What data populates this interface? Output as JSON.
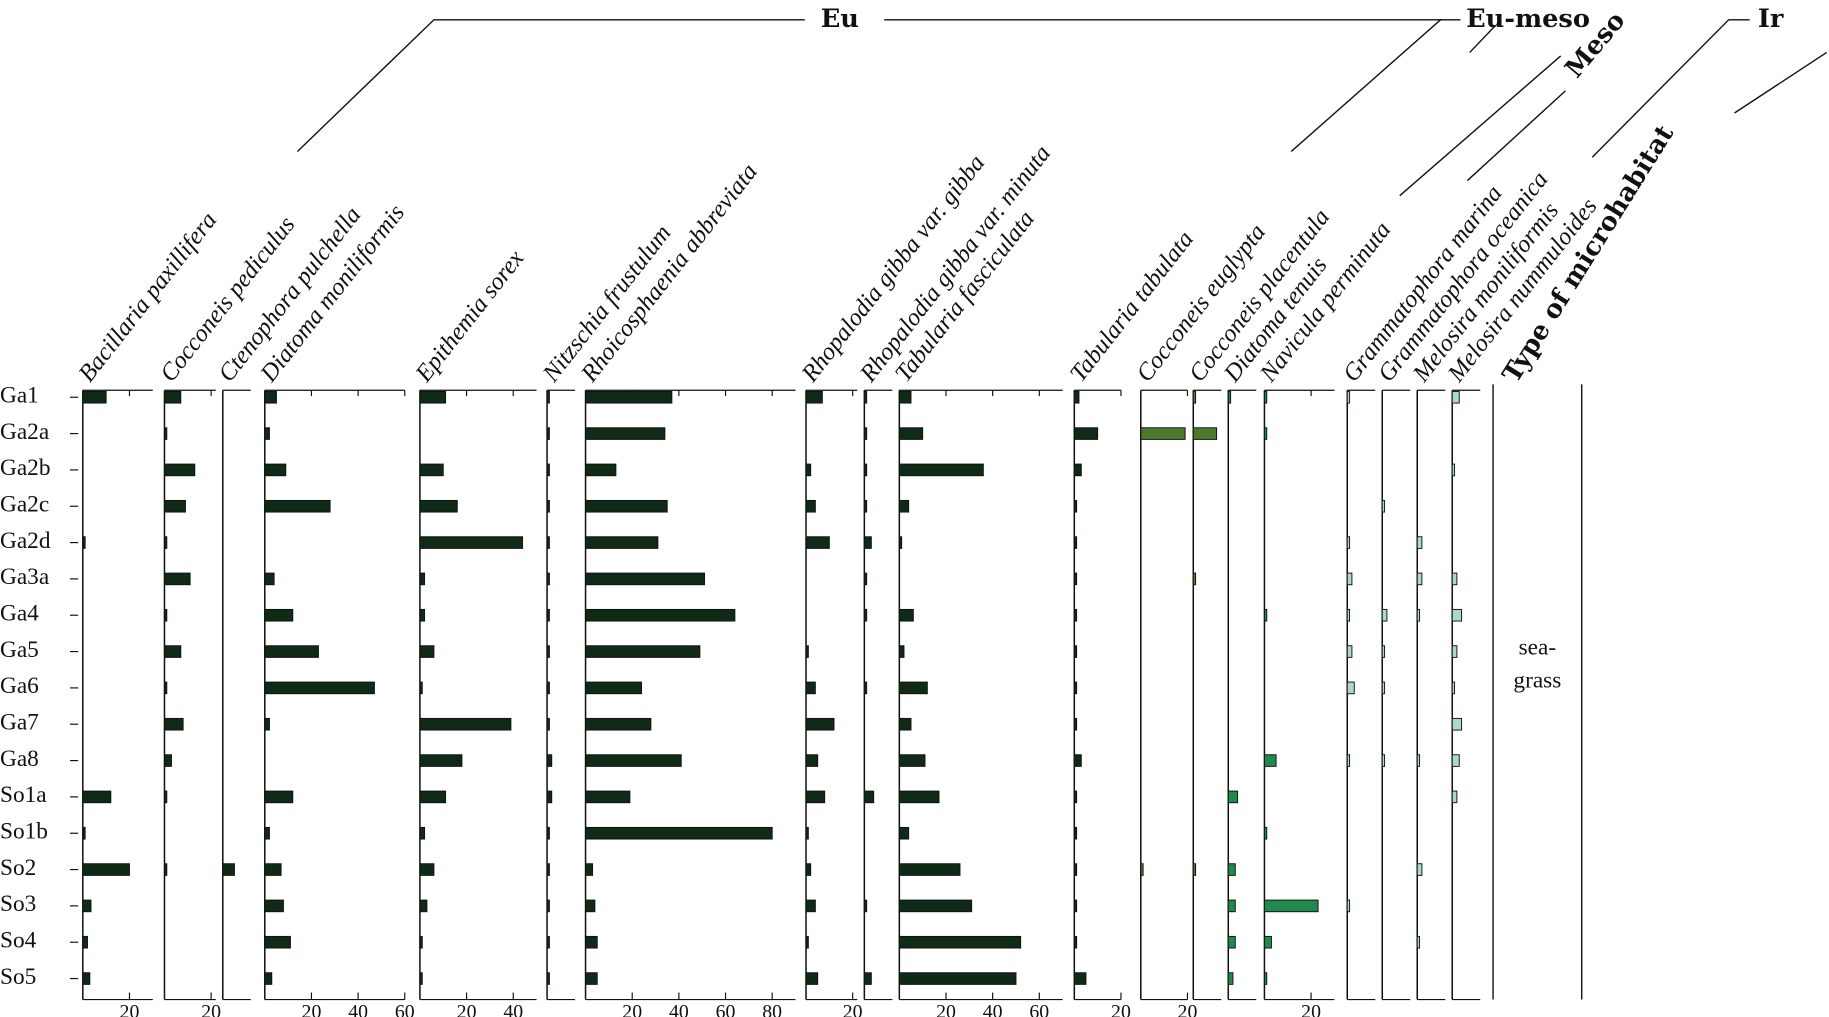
{
  "chart_data": {
    "type": "bar",
    "orientation": "horizontal",
    "categories": [
      "Ga1",
      "Ga2a",
      "Ga2b",
      "Ga2c",
      "Ga2d",
      "Ga3a",
      "Ga4",
      "Ga5",
      "Ga6",
      "Ga7",
      "Ga8",
      "So1a",
      "So1b",
      "So2",
      "So3",
      "So4",
      "So5"
    ],
    "series": [
      {
        "name": "Bacillaria paxillifera",
        "color": "#0f2a16",
        "xlim": [
          0,
          30
        ],
        "xticks": [
          20
        ],
        "values": [
          10,
          0,
          0,
          0,
          1,
          0,
          0,
          0,
          0,
          0,
          0,
          12,
          1,
          20,
          3.5,
          2,
          3
        ]
      },
      {
        "name": "Cocconeis pediculus",
        "color": "#0f2a16",
        "xlim": [
          0,
          22
        ],
        "xticks": [
          20
        ],
        "values": [
          7,
          1,
          13,
          9,
          1,
          11,
          1,
          7,
          1,
          8,
          3,
          1,
          0,
          1,
          0,
          0,
          0
        ]
      },
      {
        "name": "Ctenophora pulchella",
        "color": "#0f2a16",
        "xlim": [
          0,
          12
        ],
        "xticks": [],
        "values": [
          0,
          0,
          0,
          0,
          0,
          0,
          0,
          0,
          0,
          0,
          0,
          0,
          0,
          5,
          0,
          0,
          0
        ]
      },
      {
        "name": "Diatoma moniliformis",
        "color": "#0f2a16",
        "xlim": [
          0,
          60
        ],
        "xticks": [
          20,
          40,
          60
        ],
        "values": [
          5,
          2,
          9,
          28,
          0,
          4,
          12,
          23,
          47,
          2,
          0,
          12,
          2,
          7,
          8,
          11,
          3
        ]
      },
      {
        "name": "Epithemia sorex",
        "color": "#0f2a16",
        "xlim": [
          0,
          50
        ],
        "xticks": [
          20,
          40
        ],
        "values": [
          11,
          0,
          10,
          16,
          44,
          2,
          2,
          6,
          1,
          39,
          18,
          11,
          2,
          6,
          3,
          1,
          1
        ]
      },
      {
        "name": "Nitzschia frustulum",
        "color": "#0f2a16",
        "xlim": [
          0,
          12
        ],
        "xticks": [],
        "values": [
          1,
          1,
          1,
          1,
          1,
          1,
          1,
          1,
          1,
          1,
          2,
          2,
          1,
          1,
          1,
          1,
          1
        ]
      },
      {
        "name": "Rhoicosphaenia abbreviata",
        "color": "#0f2a16",
        "xlim": [
          0,
          90
        ],
        "xticks": [
          20,
          40,
          60,
          80
        ],
        "values": [
          37,
          34,
          13,
          35,
          31,
          51,
          64,
          49,
          24,
          28,
          41,
          19,
          80,
          3,
          4,
          5,
          5
        ]
      },
      {
        "name": "Rhopalodia gibba var. gibba",
        "color": "#0f2a16",
        "xlim": [
          0,
          22
        ],
        "xticks": [
          20
        ],
        "values": [
          7,
          0,
          2,
          4,
          10,
          0,
          0,
          1,
          4,
          12,
          5,
          8,
          1,
          2,
          4,
          1,
          5
        ]
      },
      {
        "name": "Rhopalodia gibba var. minuta",
        "color": "#0f2a16",
        "xlim": [
          0,
          12
        ],
        "xticks": [],
        "values": [
          1,
          1,
          1,
          1,
          3,
          1,
          1,
          0,
          1,
          0,
          0,
          4,
          0,
          0,
          1,
          0,
          3
        ]
      },
      {
        "name": "Tabularia fasciculata",
        "color": "#0f2a16",
        "xlim": [
          0,
          70
        ],
        "xticks": [
          20,
          40,
          60
        ],
        "values": [
          5,
          10,
          36,
          4,
          1,
          0,
          6,
          2,
          12,
          5,
          11,
          17,
          4,
          26,
          31,
          52,
          50
        ]
      },
      {
        "name": "Tabularia tabulata",
        "color": "#0f2a16",
        "xlim": [
          0,
          20
        ],
        "xticks": [
          20
        ],
        "values": [
          2,
          10,
          3,
          1,
          1,
          1,
          1,
          1,
          1,
          1,
          3,
          1,
          1,
          1,
          1,
          1,
          5
        ]
      },
      {
        "name": "Cocconeis euglypta",
        "color": "#4c7a2c",
        "xlim": [
          0,
          20
        ],
        "xticks": [
          20
        ],
        "values": [
          0,
          19,
          0,
          0,
          0,
          0,
          0,
          0,
          0,
          0,
          0,
          0,
          0,
          1,
          0,
          0,
          0
        ]
      },
      {
        "name": "Cocconeis placentula",
        "color": "#4c7a2c",
        "xlim": [
          0,
          12
        ],
        "xticks": [],
        "values": [
          1,
          10,
          0,
          0,
          0,
          1,
          0,
          0,
          0,
          0,
          0,
          0,
          0,
          1,
          0,
          0,
          0
        ]
      },
      {
        "name": "Diatoma tenuis",
        "color": "#1f8a4c",
        "xlim": [
          0,
          12
        ],
        "xticks": [],
        "values": [
          1,
          0,
          0,
          0,
          0,
          0,
          0,
          0,
          0,
          0,
          0,
          4,
          0,
          3,
          3,
          3,
          2
        ]
      },
      {
        "name": "Navicula perminuta",
        "color": "#1f8a4c",
        "xlim": [
          0,
          30
        ],
        "xticks": [
          20
        ],
        "values": [
          1,
          1,
          0,
          0,
          0,
          0,
          1,
          0,
          0,
          0,
          5,
          0,
          1,
          0,
          23,
          3,
          1
        ]
      },
      {
        "name": "Grammatophora marina",
        "color": "#a9dcc2",
        "xlim": [
          0,
          12
        ],
        "xticks": [],
        "values": [
          1,
          0,
          0,
          0,
          1,
          2,
          1,
          2,
          3,
          0,
          1,
          0,
          0,
          0,
          1,
          0,
          0
        ]
      },
      {
        "name": "Grammatophora oceanica",
        "color": "#a9dcc2",
        "xlim": [
          0,
          12
        ],
        "xticks": [],
        "values": [
          0,
          0,
          0,
          1,
          0,
          0,
          2,
          1,
          1,
          0,
          1,
          0,
          0,
          0,
          0,
          0,
          0
        ]
      },
      {
        "name": "Melosira moniliformis",
        "color": "#a9dcc2",
        "xlim": [
          0,
          12
        ],
        "xticks": [],
        "values": [
          0,
          0,
          0,
          0,
          2,
          2,
          1,
          0,
          0,
          0,
          1,
          0,
          0,
          2,
          0,
          1,
          0
        ]
      },
      {
        "name": "Melosira nummuloides",
        "color": "#a9dcc2",
        "xlim": [
          0,
          12
        ],
        "xticks": [],
        "values": [
          3,
          0,
          1,
          0,
          0,
          2,
          4,
          2,
          1,
          4,
          3,
          2,
          0,
          0,
          0,
          0,
          0
        ]
      }
    ],
    "groups": [
      "Eu",
      "Eu-meso",
      "Meso",
      "Ir"
    ],
    "microhabitat_title": "Type of microhabitat",
    "microhabitat": [
      "sea-",
      "grass"
    ]
  }
}
